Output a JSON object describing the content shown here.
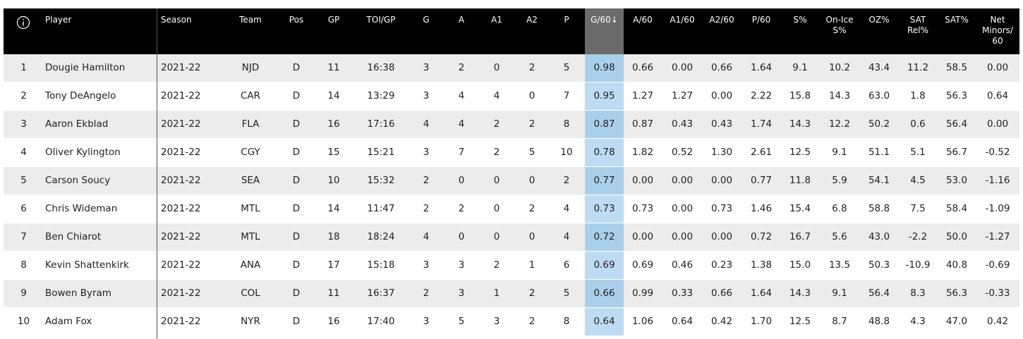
{
  "table": {
    "columns": [
      "Player",
      "Season",
      "Team",
      "Pos",
      "GP",
      "TOI/GP",
      "G",
      "A",
      "A1",
      "A2",
      "P",
      "G/60↓",
      "A/60",
      "A1/60",
      "A2/60",
      "P/60",
      "S%",
      [
        "On-Ice",
        "S%"
      ],
      "OZ%",
      [
        "SAT",
        "Rel%"
      ],
      "SAT%",
      [
        "Net",
        "Minors/",
        "60"
      ]
    ],
    "rows": [
      [
        "1",
        "Dougie Hamilton",
        "2021-22",
        "NJD",
        "D",
        "11",
        "16:38",
        "3",
        "2",
        "0",
        "2",
        "5",
        "0.98",
        "0.66",
        "0.00",
        "0.66",
        "1.64",
        "9.1",
        "10.2",
        "43.4",
        "11.2",
        "58.5",
        "0.00"
      ],
      [
        "2",
        "Tony DeAngelo",
        "2021-22",
        "CAR",
        "D",
        "14",
        "13:29",
        "3",
        "4",
        "4",
        "0",
        "7",
        "0.95",
        "1.27",
        "1.27",
        "0.00",
        "2.22",
        "15.8",
        "14.3",
        "63.0",
        "1.8",
        "56.3",
        "0.64"
      ],
      [
        "3",
        "Aaron Ekblad",
        "2021-22",
        "FLA",
        "D",
        "16",
        "17:16",
        "4",
        "4",
        "2",
        "2",
        "8",
        "0.87",
        "0.87",
        "0.43",
        "0.43",
        "1.74",
        "14.3",
        "12.2",
        "50.2",
        "0.6",
        "56.4",
        "0.00"
      ],
      [
        "4",
        "Oliver Kylington",
        "2021-22",
        "CGY",
        "D",
        "15",
        "15:21",
        "3",
        "7",
        "2",
        "5",
        "10",
        "0.78",
        "1.82",
        "0.52",
        "1.30",
        "2.61",
        "12.5",
        "9.1",
        "51.1",
        "5.1",
        "56.7",
        "-0.52"
      ],
      [
        "5",
        "Carson Soucy",
        "2021-22",
        "SEA",
        "D",
        "10",
        "15:32",
        "2",
        "0",
        "0",
        "0",
        "2",
        "0.77",
        "0.00",
        "0.00",
        "0.00",
        "0.77",
        "11.8",
        "5.9",
        "54.1",
        "4.5",
        "53.0",
        "-1.16"
      ],
      [
        "6",
        "Chris Wideman",
        "2021-22",
        "MTL",
        "D",
        "14",
        "11:47",
        "2",
        "2",
        "0",
        "2",
        "4",
        "0.73",
        "0.73",
        "0.00",
        "0.73",
        "1.46",
        "15.4",
        "6.8",
        "58.8",
        "7.5",
        "58.4",
        "-1.09"
      ],
      [
        "7",
        "Ben Chiarot",
        "2021-22",
        "MTL",
        "D",
        "18",
        "18:24",
        "4",
        "0",
        "0",
        "0",
        "4",
        "0.72",
        "0.00",
        "0.00",
        "0.00",
        "0.72",
        "16.7",
        "5.6",
        "43.0",
        "-2.2",
        "50.0",
        "-1.27"
      ],
      [
        "8",
        "Kevin Shattenkirk",
        "2021-22",
        "ANA",
        "D",
        "17",
        "15:18",
        "3",
        "3",
        "2",
        "1",
        "6",
        "0.69",
        "0.69",
        "0.46",
        "0.23",
        "1.38",
        "15.0",
        "13.5",
        "50.3",
        "-10.9",
        "40.8",
        "-0.69"
      ],
      [
        "9",
        "Bowen Byram",
        "2021-22",
        "COL",
        "D",
        "11",
        "16:37",
        "2",
        "3",
        "1",
        "2",
        "5",
        "0.66",
        "0.99",
        "0.33",
        "0.66",
        "1.64",
        "14.3",
        "9.1",
        "56.4",
        "8.3",
        "56.3",
        "-0.33"
      ],
      [
        "10",
        "Adam Fox",
        "2021-22",
        "NYR",
        "D",
        "16",
        "17:40",
        "3",
        "5",
        "3",
        "2",
        "8",
        "0.64",
        "1.06",
        "0.64",
        "0.42",
        "1.70",
        "12.5",
        "8.7",
        "48.8",
        "4.3",
        "47.0",
        "0.42"
      ]
    ]
  }
}
